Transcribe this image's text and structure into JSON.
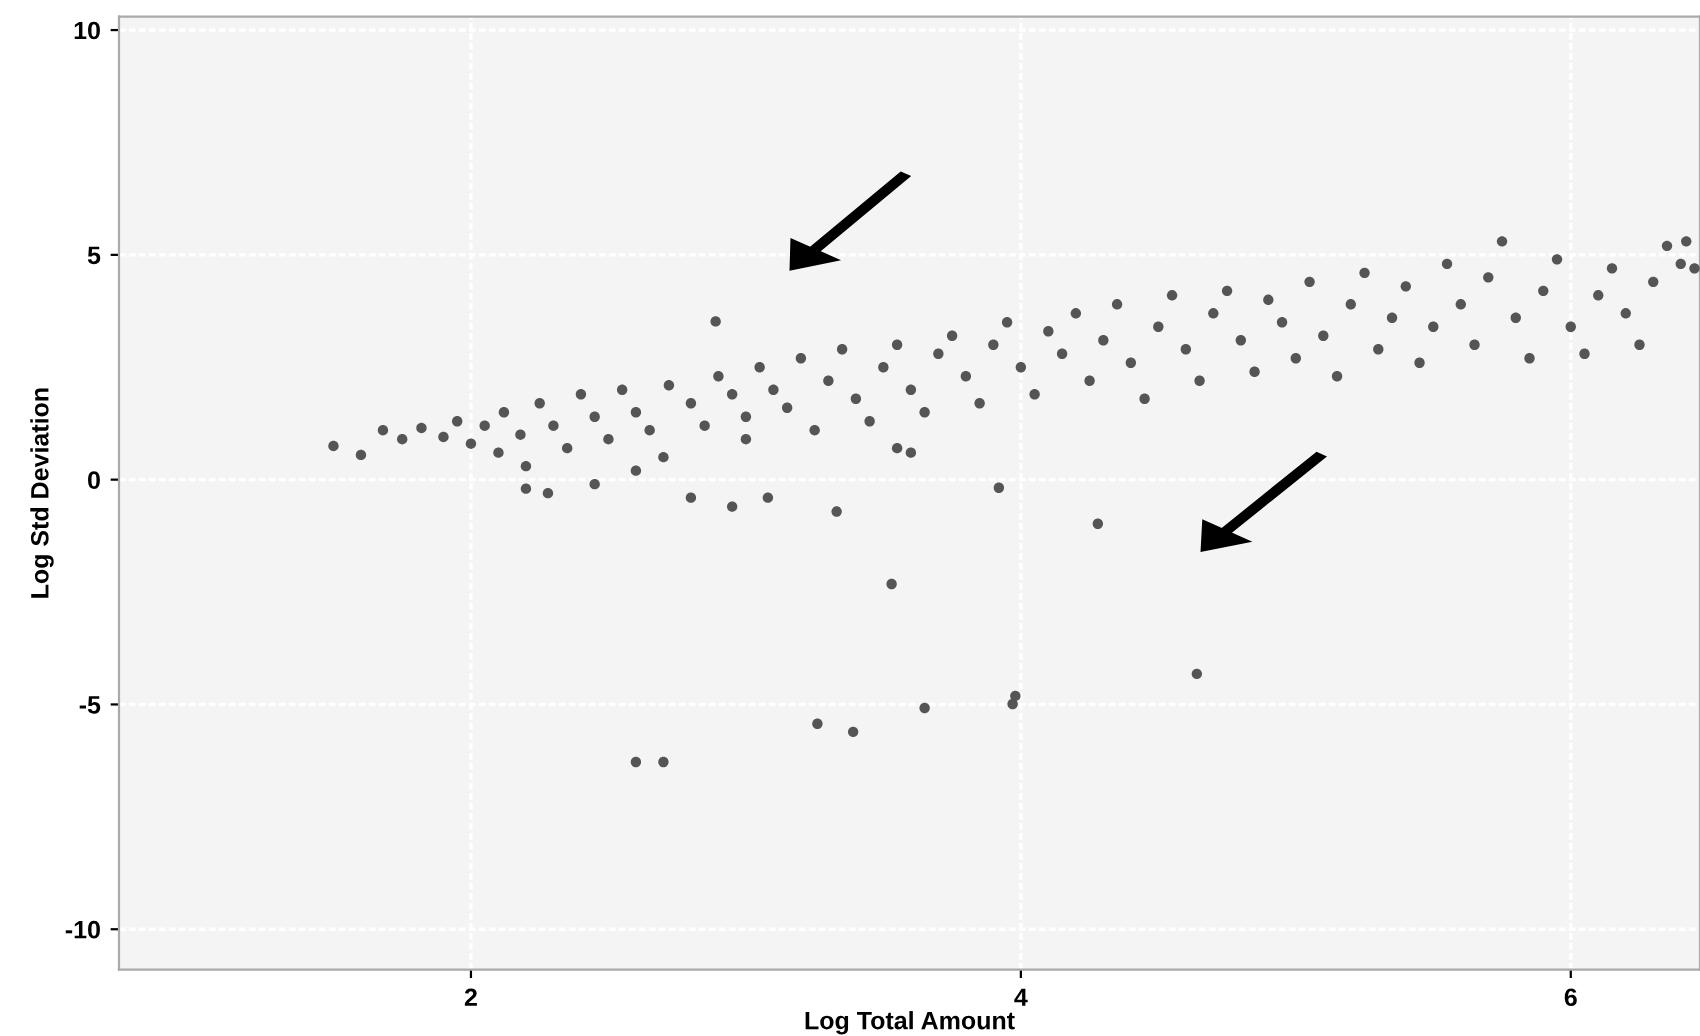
{
  "chart_data": {
    "type": "scatter",
    "xlabel": "Log Total Amount",
    "ylabel": "Log Std Deviation",
    "xlim": [
      0.72,
      6.47
    ],
    "ylim": [
      -10.9,
      10.3
    ],
    "xticks": [
      2,
      4,
      6
    ],
    "yticks": [
      -10,
      -5,
      0,
      5,
      10
    ],
    "grid": true,
    "marker": "circle",
    "series": [
      {
        "color": "#555555",
        "x": [
          1.5,
          1.6,
          1.68,
          1.75,
          1.82,
          1.9,
          1.95,
          2.0,
          2.05,
          2.1,
          2.12,
          2.18,
          2.2,
          2.25,
          2.3,
          2.35,
          2.4,
          2.45,
          2.5,
          2.55,
          2.6,
          2.65,
          2.7,
          2.72,
          2.8,
          2.85,
          2.9,
          2.95,
          3.0,
          3.0,
          3.05,
          3.1,
          3.15,
          3.2,
          3.25,
          3.3,
          3.35,
          3.4,
          3.45,
          3.5,
          3.55,
          3.6,
          3.65,
          3.7,
          3.75,
          3.8,
          3.85,
          3.9,
          3.95,
          4.0,
          4.05,
          4.1,
          4.15,
          4.2,
          4.25,
          4.3,
          4.35,
          4.4,
          4.45,
          4.5,
          4.55,
          4.6,
          4.65,
          4.7,
          4.75,
          4.8,
          4.85,
          4.9,
          4.95,
          5.0,
          5.05,
          5.1,
          5.15,
          5.2,
          5.25,
          5.3,
          5.35,
          5.4,
          5.45,
          5.5,
          5.55,
          5.6,
          5.65,
          5.7,
          5.75,
          5.8,
          5.85,
          5.9,
          5.95,
          6.0,
          6.05,
          6.1,
          6.15,
          6.2,
          6.25,
          6.3,
          6.35,
          6.4,
          6.42,
          6.45,
          2.2,
          2.28,
          2.45,
          2.8,
          2.95,
          3.08,
          2.6,
          3.55,
          3.6,
          2.6,
          2.7,
          3.26,
          3.39,
          3.65,
          3.97,
          3.98,
          4.64,
          3.53,
          3.33,
          4.28,
          3.92,
          2.89
        ],
        "values": [
          0.75,
          0.55,
          1.1,
          0.9,
          1.15,
          0.95,
          1.3,
          0.8,
          1.2,
          0.6,
          1.5,
          1.0,
          0.3,
          1.7,
          1.2,
          0.7,
          1.9,
          1.4,
          0.9,
          2.0,
          1.5,
          1.1,
          0.5,
          2.1,
          1.7,
          1.2,
          2.3,
          1.9,
          1.4,
          0.9,
          2.5,
          2.0,
          1.6,
          2.7,
          1.1,
          2.2,
          2.9,
          1.8,
          1.3,
          2.5,
          3.0,
          2.0,
          1.5,
          2.8,
          3.2,
          2.3,
          1.7,
          3.0,
          3.5,
          2.5,
          1.9,
          3.3,
          2.8,
          3.7,
          2.2,
          3.1,
          3.9,
          2.6,
          1.8,
          3.4,
          4.1,
          2.9,
          2.2,
          3.7,
          4.2,
          3.1,
          2.4,
          4.0,
          3.5,
          2.7,
          4.4,
          3.2,
          2.3,
          3.9,
          4.6,
          2.9,
          3.6,
          4.3,
          2.6,
          3.4,
          4.8,
          3.9,
          3.0,
          4.5,
          5.3,
          3.6,
          2.7,
          4.2,
          4.9,
          3.4,
          2.8,
          4.1,
          4.7,
          3.7,
          3.0,
          4.4,
          5.2,
          4.8,
          5.3,
          4.7,
          -0.2,
          -0.3,
          -0.1,
          -0.4,
          -0.6,
          -0.4,
          0.2,
          0.7,
          0.6,
          -6.28,
          -6.28,
          -5.43,
          -5.61,
          -5.08,
          -4.99,
          -4.81,
          -4.32,
          -2.32,
          -0.71,
          -0.98,
          -0.18,
          3.52
        ]
      }
    ]
  }
}
